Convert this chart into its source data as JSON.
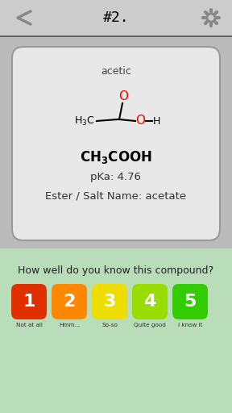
{
  "title": "#2.",
  "bg_color": "#b8ddb8",
  "header_bg": "#cccccc",
  "card_bg": "#e8e8e8",
  "compound_name": "acetic",
  "formula_text": "CH₃COOH",
  "pka_text": "pKa: 4.76",
  "ester_text": "Ester / Salt Name: acetate",
  "question_text": "How well do you know this compound?",
  "buttons": [
    "1",
    "2",
    "3",
    "4",
    "5"
  ],
  "button_colors": [
    "#e03000",
    "#ff8800",
    "#eedd00",
    "#99dd00",
    "#33cc00"
  ],
  "button_labels": [
    "Not at all",
    "Hmm...",
    "So-so",
    "Quite good",
    "I know it"
  ]
}
